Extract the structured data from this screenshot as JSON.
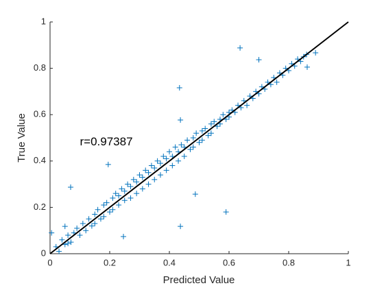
{
  "chart_data": {
    "type": "scatter",
    "xlabel": "Predicted Value",
    "ylabel": "True Value",
    "annotation": {
      "text": "r=0.97387",
      "x": 0.1,
      "y": 0.48
    },
    "reference_line": {
      "x": [
        0,
        1
      ],
      "y": [
        0,
        1
      ],
      "color": "#000000"
    },
    "color": "#0072BD",
    "xlim": [
      0,
      1
    ],
    "ylim": [
      0,
      1
    ],
    "xticks": [
      0,
      0.2,
      0.4,
      0.6,
      0.8,
      1
    ],
    "yticks": [
      0,
      0.2,
      0.4,
      0.6,
      0.8,
      1
    ],
    "x": [
      0.02,
      0.03,
      0.04,
      0.05,
      0.06,
      0.07,
      0.08,
      0.09,
      0.1,
      0.11,
      0.12,
      0.13,
      0.14,
      0.15,
      0.15,
      0.16,
      0.17,
      0.18,
      0.18,
      0.19,
      0.2,
      0.21,
      0.21,
      0.22,
      0.23,
      0.23,
      0.24,
      0.25,
      0.25,
      0.26,
      0.27,
      0.27,
      0.28,
      0.29,
      0.29,
      0.3,
      0.31,
      0.31,
      0.32,
      0.33,
      0.33,
      0.34,
      0.35,
      0.35,
      0.36,
      0.37,
      0.37,
      0.38,
      0.39,
      0.39,
      0.4,
      0.41,
      0.41,
      0.42,
      0.43,
      0.43,
      0.44,
      0.45,
      0.45,
      0.46,
      0.47,
      0.48,
      0.48,
      0.49,
      0.5,
      0.51,
      0.51,
      0.52,
      0.53,
      0.54,
      0.54,
      0.55,
      0.56,
      0.57,
      0.57,
      0.58,
      0.59,
      0.6,
      0.6,
      0.61,
      0.62,
      0.63,
      0.64,
      0.65,
      0.66,
      0.67,
      0.68,
      0.69,
      0.7,
      0.71,
      0.72,
      0.73,
      0.74,
      0.75,
      0.76,
      0.77,
      0.78,
      0.79,
      0.8,
      0.81,
      0.82,
      0.83,
      0.84,
      0.85,
      0.86,
      0.069,
      0.195,
      0.437,
      0.434,
      0.637,
      0.7,
      0.862,
      0.89,
      0.487,
      0.59,
      0.437,
      0.246,
      0.05,
      0.005,
      0.06
    ],
    "values": [
      0.03,
      0.01,
      0.06,
      0.04,
      0.08,
      0.05,
      0.09,
      0.11,
      0.08,
      0.13,
      0.1,
      0.15,
      0.12,
      0.17,
      0.13,
      0.19,
      0.15,
      0.21,
      0.16,
      0.22,
      0.18,
      0.24,
      0.19,
      0.26,
      0.21,
      0.25,
      0.28,
      0.23,
      0.27,
      0.3,
      0.24,
      0.29,
      0.32,
      0.26,
      0.31,
      0.34,
      0.28,
      0.33,
      0.36,
      0.3,
      0.35,
      0.38,
      0.32,
      0.37,
      0.4,
      0.34,
      0.39,
      0.42,
      0.36,
      0.41,
      0.44,
      0.38,
      0.42,
      0.46,
      0.4,
      0.44,
      0.47,
      0.42,
      0.46,
      0.49,
      0.45,
      0.5,
      0.46,
      0.52,
      0.48,
      0.53,
      0.49,
      0.54,
      0.51,
      0.56,
      0.52,
      0.57,
      0.55,
      0.58,
      0.56,
      0.6,
      0.58,
      0.61,
      0.59,
      0.62,
      0.61,
      0.64,
      0.63,
      0.66,
      0.64,
      0.68,
      0.67,
      0.7,
      0.69,
      0.72,
      0.71,
      0.74,
      0.73,
      0.76,
      0.74,
      0.78,
      0.77,
      0.8,
      0.79,
      0.82,
      0.81,
      0.84,
      0.83,
      0.85,
      0.86,
      0.287,
      0.385,
      0.577,
      0.716,
      0.888,
      0.837,
      0.805,
      0.867,
      0.257,
      0.18,
      0.118,
      0.074,
      0.118,
      0.09,
      0.044
    ]
  }
}
